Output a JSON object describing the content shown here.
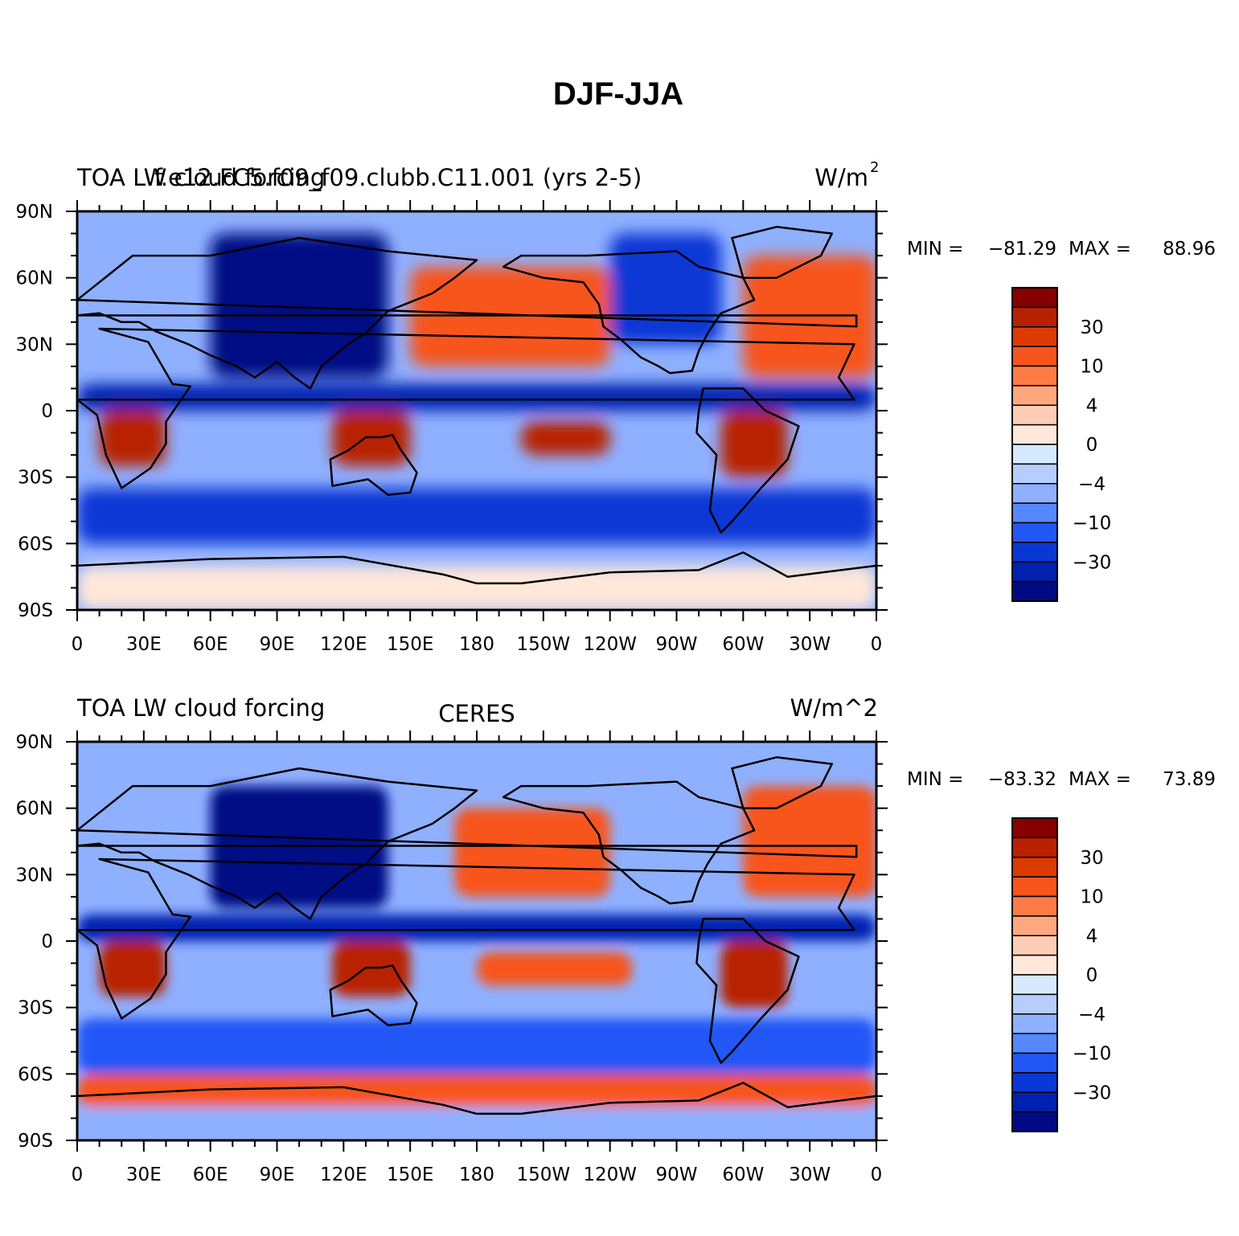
{
  "figure": {
    "title": "DJF-JJA"
  },
  "panels": [
    {
      "left_title": "TOA LW cloud forcing",
      "center_title": "f.e12.FC5.f09_f09.clubb.C11.001 (yrs 2-5)",
      "units_base": "W/m",
      "units_sup": "2",
      "units": "W/m2",
      "min_label": "MIN =",
      "min_value": "−81.29",
      "max_label": "MAX =",
      "max_value": "88.96"
    },
    {
      "left_title": "TOA LW cloud forcing",
      "center_title": "CERES",
      "units_base": "W/m^2",
      "units_sup": "",
      "units": "W/m^2",
      "min_label": "MIN =",
      "min_value": "−83.32",
      "max_label": "MAX =",
      "max_value": "73.89"
    }
  ],
  "axes": {
    "x_ticks": [
      "0",
      "30E",
      "60E",
      "90E",
      "120E",
      "150E",
      "180",
      "150W",
      "120W",
      "90W",
      "60W",
      "30W",
      "0"
    ],
    "y_ticks": [
      "90N",
      "60N",
      "30N",
      "0",
      "30S",
      "60S",
      "90S"
    ]
  },
  "colorbar": {
    "colors": [
      "#870000",
      "#b82000",
      "#dd3a00",
      "#f7541e",
      "#fe7b45",
      "#ffa77f",
      "#ffcdb5",
      "#ffe8d9",
      "#d6e9ff",
      "#b6cdff",
      "#8fb0ff",
      "#5588ff",
      "#2257f6",
      "#0837d6",
      "#0020b0",
      "#000a84"
    ],
    "labels": [
      "30",
      "10",
      "4",
      "0",
      "−4",
      "−10",
      "−30"
    ]
  },
  "chart_data": [
    {
      "type": "heatmap",
      "title": "TOA LW cloud forcing",
      "subtitle": "f.e12.FC5.f09_f09.clubb.C11.001 (yrs 2-5)",
      "xlabel": "",
      "ylabel": "",
      "units": "W/m2",
      "x_range": [
        0,
        360
      ],
      "y_range": [
        -90,
        90
      ],
      "min": -81.29,
      "max": 88.96,
      "contour_levels": [
        -50,
        -40,
        -30,
        -20,
        -10,
        -6,
        -4,
        -2,
        0,
        2,
        4,
        6,
        10,
        20,
        30,
        40,
        50
      ],
      "approximate_features": [
        {
          "region": "central Africa",
          "lon": [
            10,
            40
          ],
          "lat": [
            -25,
            0
          ],
          "value": 40
        },
        {
          "region": "Australia / Maritime Continent",
          "lon": [
            115,
            150
          ],
          "lat": [
            -25,
            0
          ],
          "value": 40
        },
        {
          "region": "south Pacific",
          "lon": [
            200,
            240
          ],
          "lat": [
            -20,
            -5
          ],
          "value": 40
        },
        {
          "region": "South America",
          "lon": [
            290,
            320
          ],
          "lat": [
            -30,
            0
          ],
          "value": 40
        },
        {
          "region": "north Pacific",
          "lon": [
            150,
            240
          ],
          "lat": [
            20,
            65
          ],
          "value": 20
        },
        {
          "region": "north Atlantic",
          "lon": [
            300,
            360
          ],
          "lat": [
            15,
            70
          ],
          "value": 20
        },
        {
          "region": "Asia",
          "lon": [
            60,
            140
          ],
          "lat": [
            15,
            80
          ],
          "value": -40
        },
        {
          "region": "tropics north",
          "lon": [
            0,
            360
          ],
          "lat": [
            0,
            12
          ],
          "value": -30
        },
        {
          "region": "north America",
          "lon": [
            240,
            290
          ],
          "lat": [
            30,
            80
          ],
          "value": -20
        },
        {
          "region": "southern ocean",
          "lon": [
            0,
            360
          ],
          "lat": [
            -60,
            -35
          ],
          "value": -15
        },
        {
          "region": "Antarctica",
          "lon": [
            0,
            360
          ],
          "lat": [
            -90,
            -70
          ],
          "value": 2
        }
      ]
    },
    {
      "type": "heatmap",
      "title": "TOA LW cloud forcing",
      "subtitle": "CERES",
      "xlabel": "",
      "ylabel": "",
      "units": "W/m^2",
      "x_range": [
        0,
        360
      ],
      "y_range": [
        -90,
        90
      ],
      "min": -83.32,
      "max": 73.89,
      "contour_levels": [
        -50,
        -40,
        -30,
        -20,
        -10,
        -6,
        -4,
        -2,
        0,
        2,
        4,
        6,
        10,
        20,
        30,
        40,
        50
      ],
      "approximate_features": [
        {
          "region": "central Africa",
          "lon": [
            10,
            40
          ],
          "lat": [
            -25,
            0
          ],
          "value": 40
        },
        {
          "region": "Australia / Maritime Continent",
          "lon": [
            115,
            150
          ],
          "lat": [
            -25,
            0
          ],
          "value": 40
        },
        {
          "region": "south Pacific",
          "lon": [
            180,
            250
          ],
          "lat": [
            -20,
            -5
          ],
          "value": 20
        },
        {
          "region": "South America",
          "lon": [
            290,
            320
          ],
          "lat": [
            -30,
            0
          ],
          "value": 40
        },
        {
          "region": "north Pacific",
          "lon": [
            170,
            240
          ],
          "lat": [
            20,
            60
          ],
          "value": 20
        },
        {
          "region": "north Atlantic",
          "lon": [
            300,
            360
          ],
          "lat": [
            20,
            70
          ],
          "value": 20
        },
        {
          "region": "Asia",
          "lon": [
            60,
            140
          ],
          "lat": [
            15,
            70
          ],
          "value": -40
        },
        {
          "region": "tropics north",
          "lon": [
            0,
            360
          ],
          "lat": [
            0,
            12
          ],
          "value": -30
        },
        {
          "region": "southern ocean",
          "lon": [
            0,
            360
          ],
          "lat": [
            -60,
            -35
          ],
          "value": -10
        },
        {
          "region": "Antarctic margin",
          "lon": [
            0,
            360
          ],
          "lat": [
            -75,
            -60
          ],
          "value": 20
        },
        {
          "region": "Antarctica interior",
          "lon": [
            0,
            360
          ],
          "lat": [
            -90,
            -75
          ],
          "value": -4
        }
      ]
    }
  ]
}
